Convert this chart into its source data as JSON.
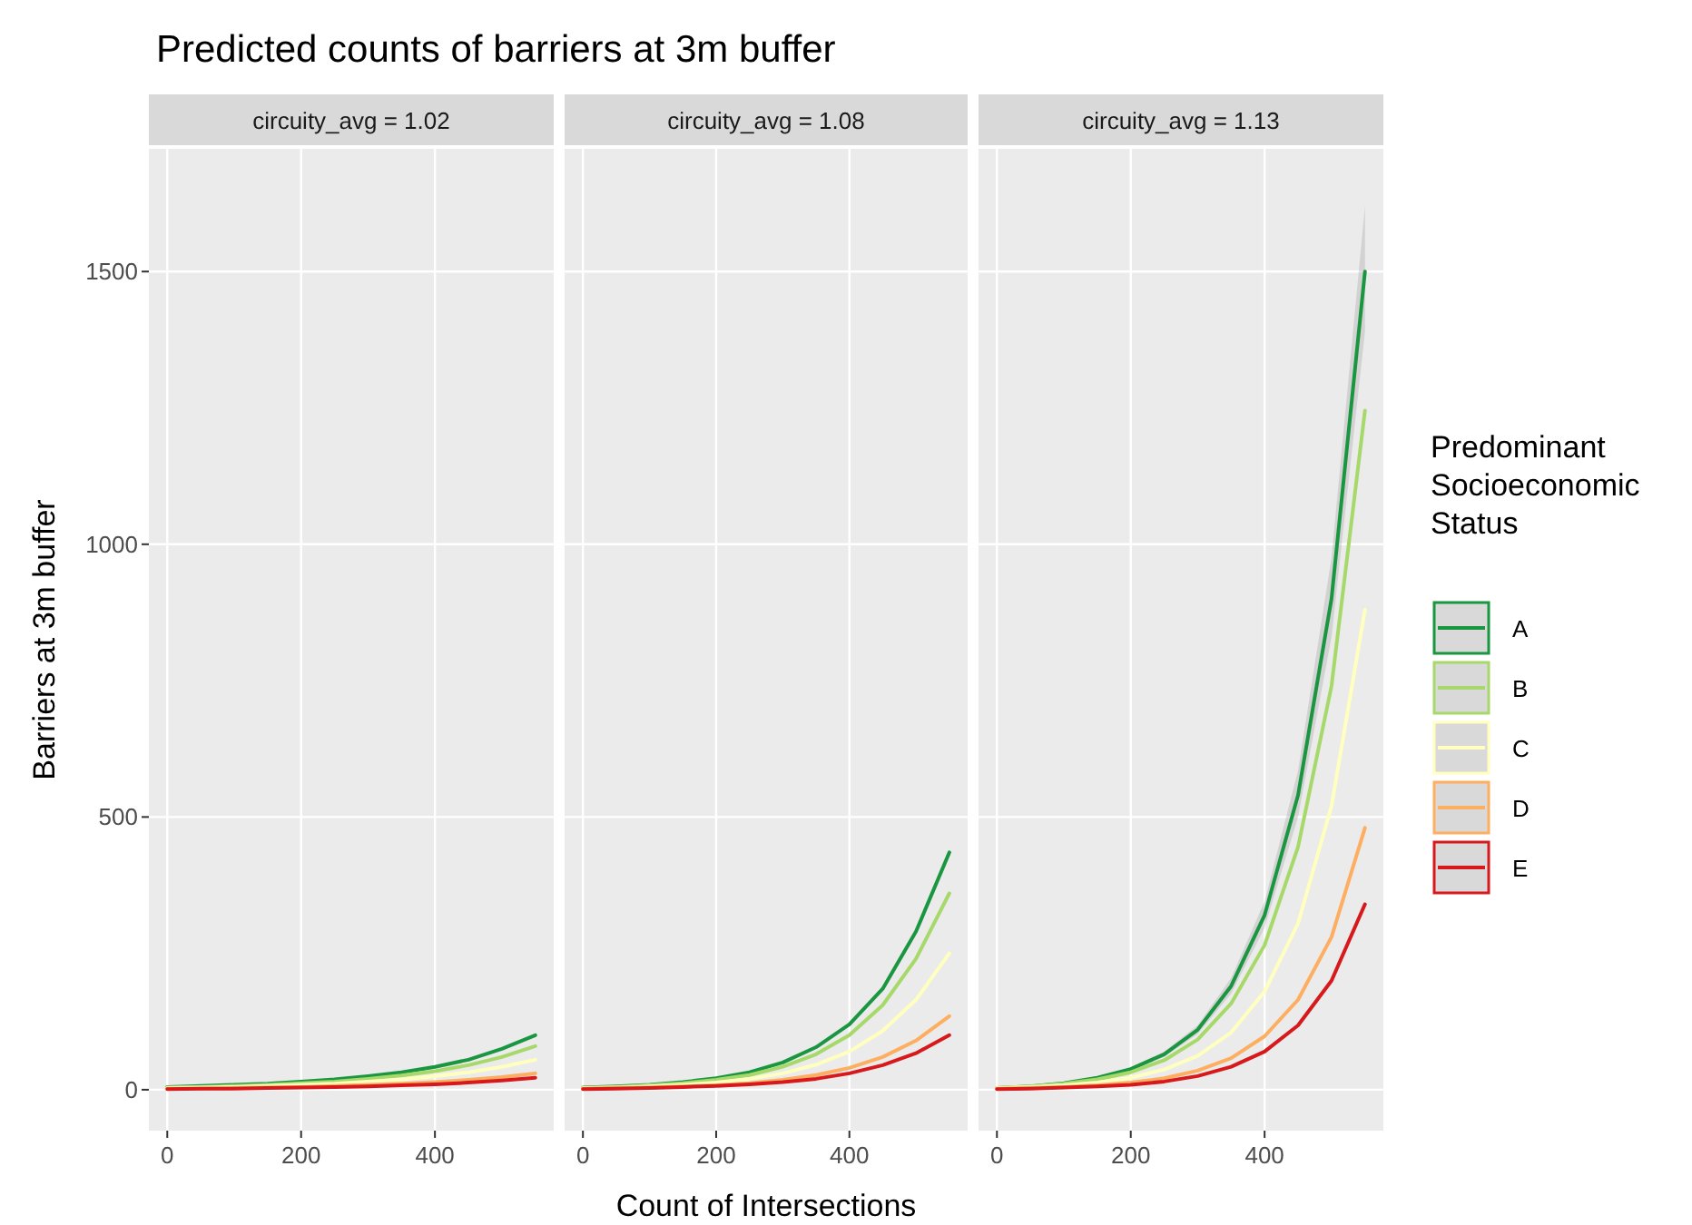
{
  "chart_data": [
    {
      "type": "line",
      "title": "Predicted counts of barriers at 3m buffer",
      "subtitle": "circuity_avg = 1.02",
      "ylabel": "Barriers at 3m buffer",
      "x": [
        0,
        50,
        100,
        150,
        200,
        250,
        300,
        350,
        400,
        450,
        500,
        550
      ],
      "xlim": [
        -27.5,
        577.5
      ],
      "ylim": [
        -75,
        1725
      ],
      "xticks": [
        0,
        200,
        400
      ],
      "yticks": [
        0,
        500,
        1000,
        1500
      ],
      "grid": true,
      "legend": false,
      "line_style": "solid",
      "series": [
        {
          "color": "#1a9641",
          "values": [
            5,
            7,
            9,
            11,
            15,
            19,
            25,
            32,
            42,
            55,
            75,
            100
          ]
        },
        {
          "color": "#a6d96a",
          "values": [
            4,
            5,
            7,
            9,
            12,
            15,
            20,
            26,
            34,
            45,
            60,
            80
          ]
        },
        {
          "color": "#ffffbf",
          "values": [
            3,
            4,
            5,
            7,
            9,
            11,
            15,
            19,
            25,
            32,
            42,
            55
          ]
        },
        {
          "color": "#fdae61",
          "values": [
            2,
            2,
            3,
            4,
            5,
            7,
            9,
            11,
            14,
            18,
            23,
            30
          ]
        },
        {
          "color": "#d7191c",
          "values": [
            1,
            2,
            2,
            3,
            4,
            5,
            6,
            8,
            10,
            13,
            17,
            22
          ]
        }
      ]
    },
    {
      "type": "line",
      "subtitle": "circuity_avg = 1.08",
      "xlabel": "Count of Intersections",
      "x": [
        0,
        50,
        100,
        150,
        200,
        250,
        300,
        350,
        400,
        450,
        500,
        550
      ],
      "xlim": [
        -27.5,
        577.5
      ],
      "ylim": [
        -75,
        1725
      ],
      "xticks": [
        0,
        200,
        400
      ],
      "yticks": [
        0,
        500,
        1000,
        1500
      ],
      "tick_labels": "x",
      "grid": true,
      "legend": false,
      "line_style": "solid",
      "series": [
        {
          "color": "#1a9641",
          "values": [
            4,
            6,
            9,
            14,
            21,
            32,
            50,
            78,
            120,
            185,
            290,
            435
          ]
        },
        {
          "color": "#a6d96a",
          "values": [
            3,
            5,
            8,
            12,
            18,
            27,
            42,
            65,
            100,
            155,
            240,
            360
          ]
        },
        {
          "color": "#ffffbf",
          "values": [
            3,
            4,
            6,
            9,
            13,
            20,
            30,
            46,
            70,
            108,
            165,
            250
          ]
        },
        {
          "color": "#fdae61",
          "values": [
            2,
            3,
            4,
            6,
            8,
            12,
            18,
            27,
            40,
            60,
            90,
            135
          ]
        },
        {
          "color": "#d7191c",
          "values": [
            1,
            2,
            3,
            5,
            7,
            10,
            14,
            20,
            30,
            45,
            67,
            100
          ]
        }
      ]
    },
    {
      "type": "line",
      "subtitle": "circuity_avg = 1.13",
      "legend_title": "Predominant Socioeconomic Status",
      "x": [
        0,
        50,
        100,
        150,
        200,
        250,
        300,
        350,
        400,
        450,
        500,
        550
      ],
      "xlim": [
        -27.5,
        577.5
      ],
      "ylim": [
        -75,
        1725
      ],
      "xticks": [
        0,
        200,
        400
      ],
      "yticks": [
        0,
        500,
        1000,
        1500
      ],
      "tick_labels": "x",
      "grid": true,
      "legend": "right",
      "line_style": "solid",
      "series": [
        {
          "name": "A",
          "color": "#1a9641",
          "values": [
            3,
            6,
            12,
            22,
            38,
            65,
            110,
            190,
            320,
            540,
            900,
            1500
          ],
          "lower": [
            2,
            5,
            11,
            20,
            35,
            60,
            102,
            176,
            297,
            500,
            830,
            1390
          ],
          "upper": [
            4,
            7,
            13,
            24,
            41,
            70,
            118,
            205,
            345,
            585,
            975,
            1620
          ]
        },
        {
          "name": "B",
          "color": "#a6d96a",
          "values": [
            3,
            6,
            11,
            19,
            32,
            54,
            92,
            158,
            265,
            445,
            740,
            1245
          ]
        },
        {
          "name": "C",
          "color": "#ffffbf",
          "values": [
            3,
            5,
            8,
            13,
            22,
            37,
            62,
            105,
            180,
            305,
            520,
            880
          ]
        },
        {
          "name": "D",
          "color": "#fdae61",
          "values": [
            2,
            3,
            5,
            8,
            13,
            21,
            35,
            58,
            98,
            165,
            280,
            480
          ]
        },
        {
          "name": "E",
          "color": "#d7191c",
          "values": [
            1,
            2,
            4,
            6,
            9,
            15,
            25,
            42,
            70,
            118,
            200,
            340
          ]
        }
      ]
    }
  ]
}
